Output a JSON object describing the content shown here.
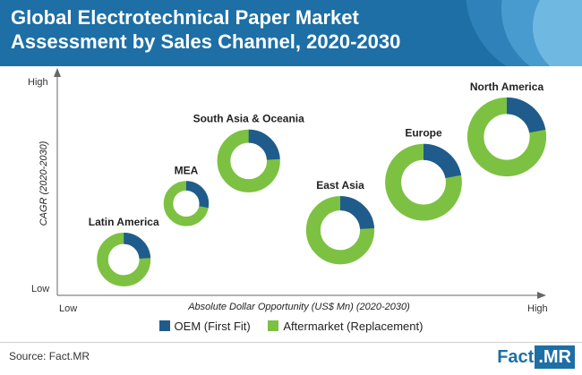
{
  "title": "Global Electrotechnical Paper Market Assessment by Sales Channel, 2020-2030",
  "colors": {
    "header": "#1d6fa5",
    "oem": "#1f5c8c",
    "aftermarket": "#7dc142"
  },
  "chart_data": {
    "type": "donut-bubble",
    "xlabel": "Absolute Dollar Opportunity (US$ Mn) (2020-2030)",
    "ylabel": "CAGR (2020-2030)",
    "x_ticks": {
      "low": "Low",
      "high": "High"
    },
    "y_ticks": {
      "low": "Low",
      "high": "High"
    },
    "x_range": [
      0,
      10
    ],
    "y_range": [
      0,
      10
    ],
    "series_names": [
      "OEM (First Fit)",
      "Aftermarket (Replacement)"
    ],
    "regions": [
      {
        "name": "Latin America",
        "x": 0.8,
        "y": 1.4,
        "size": 1.0,
        "oem_share": 0.24,
        "aftermarket_share": 0.76
      },
      {
        "name": "MEA",
        "x": 2.3,
        "y": 3.5,
        "size": 0.84,
        "oem_share": 0.28,
        "aftermarket_share": 0.72
      },
      {
        "name": "South Asia & Oceania",
        "x": 3.8,
        "y": 5.1,
        "size": 1.17,
        "oem_share": 0.24,
        "aftermarket_share": 0.76
      },
      {
        "name": "East Asia",
        "x": 6.0,
        "y": 2.5,
        "size": 1.27,
        "oem_share": 0.24,
        "aftermarket_share": 0.76
      },
      {
        "name": "Europe",
        "x": 8.0,
        "y": 4.3,
        "size": 1.43,
        "oem_share": 0.22,
        "aftermarket_share": 0.78
      },
      {
        "name": "North America",
        "x": 10.0,
        "y": 6.0,
        "size": 1.47,
        "oem_share": 0.22,
        "aftermarket_share": 0.78
      }
    ]
  },
  "legend": {
    "oem_label": "OEM (First Fit)",
    "aftermarket_label": "Aftermarket (Replacement)"
  },
  "footer": {
    "source": "Source: Fact.MR",
    "brand_main": "Fact",
    "brand_suffix": ".MR"
  }
}
